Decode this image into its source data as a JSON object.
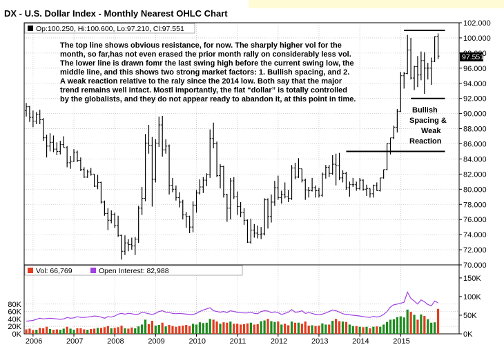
{
  "title": "DX - U.S. Dollar Index - Monthly Nearest OHLC Chart",
  "colors": {
    "bar": "#000000",
    "grid": "#c8c8c8",
    "vol_up": "#1e8c1e",
    "vol_down": "#e23c1e",
    "open_interest": "#a040e0",
    "title_banner": "#fffbd4",
    "legend_bg": "#ffffff",
    "last_price_bg": "#000000"
  },
  "legend": {
    "price": "Op:100.250, Hi:100.600, Lo:97.210, Cl:97.551",
    "volume": "Vol: 66,769",
    "open_interest": "Open Interest: 82,988"
  },
  "annotation": {
    "lines": [
      "The top line shows obvious resistance, for now.  The sharply higher vol for the",
      "month, so far,has not even erased the prior month rally on considerably less vol.",
      "The lower line is drawn fomr the last swing high before the current swing low, the",
      "middle line, and this shows two strong market factors:  1. Bullish spacing, and 2.",
      "A weak reaction relative to the raly since the 2014 low.  Both say that the major",
      "trend remains well intact.  Mostl importantly, the flat “dollar” is totally controlled",
      "by the globalists, and they do not appear ready to abandon it, at this point in time."
    ],
    "callout": [
      "Bullish",
      "Spacing  &",
      "Weak",
      "Reaction"
    ]
  },
  "last_price_label": "97.551",
  "chart_data": {
    "type": "ohlc",
    "price_axis": {
      "ylim": [
        70,
        102
      ],
      "ticks": [
        "70.000",
        "72.000",
        "74.000",
        "76.000",
        "78.000",
        "80.000",
        "82.000",
        "84.000",
        "86.000",
        "88.000",
        "90.000",
        "92.000",
        "94.000",
        "96.000",
        "98.000",
        "100.000",
        "102.000"
      ]
    },
    "volume_axis": {
      "ylim": [
        0,
        185
      ],
      "ticks_left": [
        "0K",
        "20K",
        "40K",
        "60K",
        "80K"
      ],
      "ticks_right": [
        "0K",
        "50K",
        "100K",
        "150K"
      ]
    },
    "x_axis": {
      "labels": [
        "2006",
        "2007",
        "2008",
        "2009",
        "2010",
        "2011",
        "2012",
        "2013",
        "2014",
        "2015"
      ],
      "start_year": 2006
    },
    "months": [
      "2005-11",
      "2005-12",
      "2006-01",
      "2006-02",
      "2006-03",
      "2006-04",
      "2006-05",
      "2006-06",
      "2006-07",
      "2006-08",
      "2006-09",
      "2006-10",
      "2006-11",
      "2006-12",
      "2007-01",
      "2007-02",
      "2007-03",
      "2007-04",
      "2007-05",
      "2007-06",
      "2007-07",
      "2007-08",
      "2007-09",
      "2007-10",
      "2007-11",
      "2007-12",
      "2008-01",
      "2008-02",
      "2008-03",
      "2008-04",
      "2008-05",
      "2008-06",
      "2008-07",
      "2008-08",
      "2008-09",
      "2008-10",
      "2008-11",
      "2008-12",
      "2009-01",
      "2009-02",
      "2009-03",
      "2009-04",
      "2009-05",
      "2009-06",
      "2009-07",
      "2009-08",
      "2009-09",
      "2009-10",
      "2009-11",
      "2009-12",
      "2010-01",
      "2010-02",
      "2010-03",
      "2010-04",
      "2010-05",
      "2010-06",
      "2010-07",
      "2010-08",
      "2010-09",
      "2010-10",
      "2010-11",
      "2010-12",
      "2011-01",
      "2011-02",
      "2011-03",
      "2011-04",
      "2011-05",
      "2011-06",
      "2011-07",
      "2011-08",
      "2011-09",
      "2011-10",
      "2011-11",
      "2011-12",
      "2012-01",
      "2012-02",
      "2012-03",
      "2012-04",
      "2012-05",
      "2012-06",
      "2012-07",
      "2012-08",
      "2012-09",
      "2012-10",
      "2012-11",
      "2012-12",
      "2013-01",
      "2013-02",
      "2013-03",
      "2013-04",
      "2013-05",
      "2013-06",
      "2013-07",
      "2013-08",
      "2013-09",
      "2013-10",
      "2013-11",
      "2013-12",
      "2014-01",
      "2014-02",
      "2014-03",
      "2014-04",
      "2014-05",
      "2014-06",
      "2014-07",
      "2014-08",
      "2014-09",
      "2014-10",
      "2014-11",
      "2014-12",
      "2015-01",
      "2015-02",
      "2015-03",
      "2015-04",
      "2015-05",
      "2015-06",
      "2015-07",
      "2015-08",
      "2015-09",
      "2015-10",
      "2015-11",
      "2015-12"
    ],
    "ohlc": [
      [
        90.4,
        91.4,
        89.6,
        90.9
      ],
      [
        90.9,
        91.0,
        88.9,
        89.5
      ],
      [
        89.5,
        90.4,
        88.2,
        89.0
      ],
      [
        89.0,
        90.2,
        88.6,
        89.9
      ],
      [
        89.9,
        90.5,
        88.6,
        89.2
      ],
      [
        89.2,
        89.4,
        86.4,
        86.8
      ],
      [
        86.8,
        87.2,
        84.2,
        85.7
      ],
      [
        85.7,
        87.4,
        85.0,
        86.2
      ],
      [
        86.2,
        87.1,
        84.9,
        85.3
      ],
      [
        85.3,
        86.2,
        84.5,
        85.0
      ],
      [
        85.0,
        86.4,
        84.6,
        85.9
      ],
      [
        85.9,
        87.0,
        85.5,
        85.5
      ],
      [
        85.5,
        85.7,
        82.9,
        83.5
      ],
      [
        83.5,
        84.4,
        82.7,
        83.7
      ],
      [
        83.7,
        85.3,
        83.6,
        84.9
      ],
      [
        84.9,
        85.1,
        83.6,
        83.8
      ],
      [
        83.8,
        84.2,
        82.4,
        82.6
      ],
      [
        82.6,
        82.9,
        81.5,
        81.6
      ],
      [
        81.6,
        82.6,
        81.5,
        82.3
      ],
      [
        82.3,
        82.8,
        81.8,
        82.0
      ],
      [
        82.0,
        82.0,
        80.3,
        80.4
      ],
      [
        80.4,
        81.9,
        80.0,
        80.9
      ],
      [
        80.9,
        81.0,
        78.1,
        78.3
      ],
      [
        78.3,
        78.5,
        76.5,
        76.8
      ],
      [
        76.8,
        77.5,
        74.6,
        75.9
      ],
      [
        75.9,
        77.2,
        75.5,
        76.7
      ],
      [
        76.7,
        76.9,
        74.9,
        75.2
      ],
      [
        75.2,
        76.5,
        73.7,
        73.9
      ],
      [
        73.9,
        74.0,
        70.7,
        71.8
      ],
      [
        71.8,
        73.9,
        71.3,
        72.9
      ],
      [
        72.9,
        73.4,
        71.8,
        72.7
      ],
      [
        72.7,
        73.6,
        72.0,
        72.5
      ],
      [
        72.5,
        73.7,
        71.3,
        73.4
      ],
      [
        73.4,
        77.8,
        72.9,
        77.5
      ],
      [
        77.5,
        80.3,
        76.6,
        78.8
      ],
      [
        78.8,
        87.3,
        78.4,
        86.1
      ],
      [
        86.1,
        88.5,
        84.7,
        85.8
      ],
      [
        85.8,
        86.9,
        77.7,
        81.3
      ],
      [
        81.3,
        86.6,
        80.9,
        86.1
      ],
      [
        86.1,
        89.6,
        85.6,
        88.5
      ],
      [
        88.5,
        89.7,
        84.3,
        85.2
      ],
      [
        85.2,
        86.6,
        84.7,
        85.7
      ],
      [
        85.7,
        85.9,
        79.3,
        80.5
      ],
      [
        80.5,
        81.5,
        79.6,
        80.0
      ],
      [
        80.0,
        80.5,
        78.5,
        78.9
      ],
      [
        78.9,
        79.6,
        77.6,
        78.3
      ],
      [
        78.3,
        78.6,
        76.0,
        76.6
      ],
      [
        76.6,
        77.0,
        74.9,
        76.4
      ],
      [
        76.4,
        76.5,
        74.2,
        75.0
      ],
      [
        75.0,
        78.4,
        74.3,
        77.9
      ],
      [
        77.9,
        79.9,
        76.9,
        79.5
      ],
      [
        79.5,
        81.3,
        79.3,
        80.3
      ],
      [
        80.3,
        81.6,
        79.5,
        81.2
      ],
      [
        81.2,
        82.1,
        80.4,
        81.9
      ],
      [
        81.9,
        87.9,
        81.5,
        86.7
      ],
      [
        86.7,
        88.8,
        85.4,
        86.0
      ],
      [
        86.0,
        86.3,
        81.6,
        81.8
      ],
      [
        81.8,
        83.3,
        80.1,
        83.0
      ],
      [
        83.0,
        83.1,
        78.9,
        79.3
      ],
      [
        79.3,
        79.4,
        75.7,
        77.5
      ],
      [
        77.5,
        81.5,
        76.0,
        81.1
      ],
      [
        81.1,
        81.6,
        78.7,
        79.0
      ],
      [
        79.0,
        79.7,
        76.6,
        77.7
      ],
      [
        77.7,
        78.3,
        76.3,
        76.9
      ],
      [
        76.9,
        77.5,
        75.3,
        75.9
      ],
      [
        75.9,
        76.0,
        72.9,
        73.0
      ],
      [
        73.0,
        76.1,
        72.8,
        74.6
      ],
      [
        74.6,
        75.4,
        73.6,
        74.2
      ],
      [
        74.2,
        75.2,
        73.5,
        74.0
      ],
      [
        74.0,
        75.0,
        73.4,
        74.1
      ],
      [
        74.1,
        78.8,
        73.9,
        78.6
      ],
      [
        78.6,
        78.8,
        74.8,
        76.4
      ],
      [
        76.4,
        79.3,
        75.6,
        78.3
      ],
      [
        78.3,
        81.1,
        77.8,
        80.2
      ],
      [
        80.2,
        81.8,
        78.6,
        78.9
      ],
      [
        78.9,
        79.8,
        78.1,
        79.3
      ],
      [
        79.3,
        80.9,
        78.8,
        79.0
      ],
      [
        79.0,
        79.9,
        78.3,
        78.8
      ],
      [
        78.8,
        83.2,
        78.6,
        82.8
      ],
      [
        82.8,
        83.5,
        81.3,
        81.6
      ],
      [
        81.6,
        84.1,
        81.5,
        82.7
      ],
      [
        82.7,
        82.7,
        80.9,
        81.2
      ],
      [
        81.2,
        81.4,
        78.6,
        79.9
      ],
      [
        79.9,
        80.3,
        78.9,
        79.8
      ],
      [
        79.8,
        81.5,
        79.7,
        80.2
      ],
      [
        80.2,
        80.5,
        78.9,
        79.8
      ],
      [
        79.8,
        80.2,
        78.9,
        79.2
      ],
      [
        79.2,
        82.2,
        79.0,
        82.0
      ],
      [
        82.0,
        83.2,
        81.4,
        82.9
      ],
      [
        82.9,
        83.2,
        81.6,
        82.1
      ],
      [
        82.1,
        84.5,
        81.9,
        83.3
      ],
      [
        83.3,
        84.7,
        80.5,
        83.1
      ],
      [
        83.1,
        84.8,
        81.2,
        81.5
      ],
      [
        81.5,
        82.5,
        80.9,
        82.1
      ],
      [
        82.1,
        82.3,
        79.9,
        80.2
      ],
      [
        80.2,
        81.0,
        79.0,
        80.6
      ],
      [
        80.6,
        81.5,
        80.3,
        80.6
      ],
      [
        80.6,
        81.0,
        79.8,
        80.1
      ],
      [
        80.1,
        81.5,
        79.9,
        81.2
      ],
      [
        81.2,
        81.3,
        79.8,
        80.0
      ],
      [
        80.0,
        80.6,
        79.1,
        80.1
      ],
      [
        80.1,
        80.1,
        78.9,
        79.4
      ],
      [
        79.4,
        80.6,
        78.9,
        80.5
      ],
      [
        80.5,
        80.9,
        79.8,
        79.8
      ],
      [
        79.8,
        81.5,
        79.7,
        81.5
      ],
      [
        81.5,
        82.6,
        81.4,
        82.6
      ],
      [
        82.6,
        86.1,
        82.5,
        86.0
      ],
      [
        86.0,
        86.8,
        84.6,
        86.8
      ],
      [
        86.8,
        88.4,
        86.6,
        88.2
      ],
      [
        88.2,
        90.6,
        87.5,
        90.3
      ],
      [
        90.3,
        95.5,
        90.2,
        95.0
      ],
      [
        95.0,
        95.5,
        93.3,
        95.3
      ],
      [
        95.3,
        100.4,
        95.2,
        98.4
      ],
      [
        98.4,
        100.0,
        94.5,
        94.7
      ],
      [
        94.7,
        96.3,
        93.1,
        96.2
      ],
      [
        96.2,
        97.6,
        93.5,
        95.1
      ],
      [
        95.1,
        98.2,
        94.4,
        97.0
      ],
      [
        97.0,
        98.1,
        92.6,
        96.0
      ],
      [
        96.0,
        96.7,
        94.5,
        96.0
      ],
      [
        96.0,
        97.4,
        93.8,
        96.9
      ],
      [
        96.9,
        100.2,
        96.8,
        100.2
      ],
      [
        100.2,
        100.6,
        97.2,
        97.6
      ]
    ],
    "volume": [
      [
        12,
        "down"
      ],
      [
        14,
        "down"
      ],
      [
        10,
        "down"
      ],
      [
        11,
        "up"
      ],
      [
        16,
        "down"
      ],
      [
        15,
        "down"
      ],
      [
        19,
        "down"
      ],
      [
        13,
        "up"
      ],
      [
        11,
        "down"
      ],
      [
        12,
        "down"
      ],
      [
        11,
        "up"
      ],
      [
        14,
        "up"
      ],
      [
        19,
        "down"
      ],
      [
        14,
        "up"
      ],
      [
        11,
        "up"
      ],
      [
        15,
        "down"
      ],
      [
        15,
        "down"
      ],
      [
        12,
        "down"
      ],
      [
        11,
        "up"
      ],
      [
        13,
        "down"
      ],
      [
        14,
        "down"
      ],
      [
        16,
        "up"
      ],
      [
        16,
        "down"
      ],
      [
        18,
        "down"
      ],
      [
        21,
        "down"
      ],
      [
        15,
        "up"
      ],
      [
        16,
        "down"
      ],
      [
        18,
        "down"
      ],
      [
        22,
        "down"
      ],
      [
        15,
        "up"
      ],
      [
        14,
        "down"
      ],
      [
        17,
        "down"
      ],
      [
        15,
        "up"
      ],
      [
        20,
        "up"
      ],
      [
        25,
        "up"
      ],
      [
        38,
        "up"
      ],
      [
        26,
        "down"
      ],
      [
        35,
        "down"
      ],
      [
        22,
        "up"
      ],
      [
        24,
        "up"
      ],
      [
        30,
        "down"
      ],
      [
        20,
        "up"
      ],
      [
        24,
        "down"
      ],
      [
        21,
        "down"
      ],
      [
        19,
        "down"
      ],
      [
        21,
        "down"
      ],
      [
        22,
        "down"
      ],
      [
        24,
        "down"
      ],
      [
        21,
        "down"
      ],
      [
        27,
        "up"
      ],
      [
        25,
        "up"
      ],
      [
        31,
        "up"
      ],
      [
        29,
        "up"
      ],
      [
        30,
        "up"
      ],
      [
        40,
        "up"
      ],
      [
        38,
        "down"
      ],
      [
        33,
        "down"
      ],
      [
        27,
        "up"
      ],
      [
        31,
        "down"
      ],
      [
        30,
        "down"
      ],
      [
        33,
        "up"
      ],
      [
        27,
        "down"
      ],
      [
        27,
        "down"
      ],
      [
        25,
        "down"
      ],
      [
        26,
        "down"
      ],
      [
        28,
        "down"
      ],
      [
        30,
        "up"
      ],
      [
        25,
        "down"
      ],
      [
        26,
        "down"
      ],
      [
        34,
        "up"
      ],
      [
        36,
        "up"
      ],
      [
        40,
        "down"
      ],
      [
        34,
        "up"
      ],
      [
        32,
        "up"
      ],
      [
        33,
        "down"
      ],
      [
        25,
        "up"
      ],
      [
        27,
        "down"
      ],
      [
        23,
        "down"
      ],
      [
        33,
        "up"
      ],
      [
        30,
        "down"
      ],
      [
        30,
        "up"
      ],
      [
        27,
        "down"
      ],
      [
        33,
        "down"
      ],
      [
        22,
        "down"
      ],
      [
        23,
        "up"
      ],
      [
        21,
        "down"
      ],
      [
        22,
        "down"
      ],
      [
        28,
        "up"
      ],
      [
        25,
        "up"
      ],
      [
        25,
        "down"
      ],
      [
        35,
        "up"
      ],
      [
        40,
        "down"
      ],
      [
        34,
        "down"
      ],
      [
        33,
        "up"
      ],
      [
        32,
        "down"
      ],
      [
        25,
        "up"
      ],
      [
        21,
        "up"
      ],
      [
        21,
        "down"
      ],
      [
        19,
        "up"
      ],
      [
        18,
        "down"
      ],
      [
        19,
        "up"
      ],
      [
        15,
        "down"
      ],
      [
        19,
        "up"
      ],
      [
        20,
        "down"
      ],
      [
        19,
        "up"
      ],
      [
        25,
        "up"
      ],
      [
        32,
        "up"
      ],
      [
        38,
        "up"
      ],
      [
        39,
        "up"
      ],
      [
        45,
        "up"
      ],
      [
        47,
        "up"
      ],
      [
        44,
        "up"
      ],
      [
        65,
        "up"
      ],
      [
        59,
        "down"
      ],
      [
        51,
        "up"
      ],
      [
        38,
        "down"
      ],
      [
        52,
        "up"
      ],
      [
        48,
        "down"
      ],
      [
        39,
        "up"
      ],
      [
        30,
        "up"
      ],
      [
        31,
        "up"
      ],
      [
        67,
        "down"
      ]
    ],
    "open_interest": [
      34,
      35,
      36,
      39,
      42,
      40,
      41,
      42,
      41,
      40,
      39,
      40,
      44,
      42,
      43,
      46,
      44,
      44,
      45,
      46,
      48,
      47,
      45,
      42,
      46,
      45,
      48,
      53,
      55,
      53,
      55,
      54,
      52,
      53,
      58,
      56,
      54,
      52,
      55,
      60,
      62,
      58,
      57,
      55,
      54,
      55,
      54,
      53,
      52,
      52,
      55,
      60,
      64,
      67,
      70,
      62,
      60,
      58,
      60,
      57,
      62,
      60,
      58,
      57,
      56,
      56,
      58,
      55,
      54,
      60,
      62,
      61,
      57,
      59,
      57,
      52,
      55,
      58,
      65,
      58,
      59,
      62,
      55,
      57,
      55,
      52,
      51,
      53,
      56,
      60,
      64,
      62,
      58,
      54,
      52,
      51,
      50,
      49,
      48,
      46,
      45,
      44,
      47,
      45,
      47,
      52,
      60,
      72,
      78,
      80,
      82,
      85,
      112,
      95,
      88,
      80,
      91,
      86,
      79,
      75,
      88,
      83
    ],
    "resistance_line": {
      "value": 101.0,
      "from": "2015-02",
      "to": "2015-12"
    },
    "swing_low_line": {
      "value": 92.0,
      "from": "2015-04",
      "to": "2015-12"
    },
    "swing_high_line": {
      "value": 85.0,
      "from": "2013-09",
      "to": "2015-12"
    }
  }
}
